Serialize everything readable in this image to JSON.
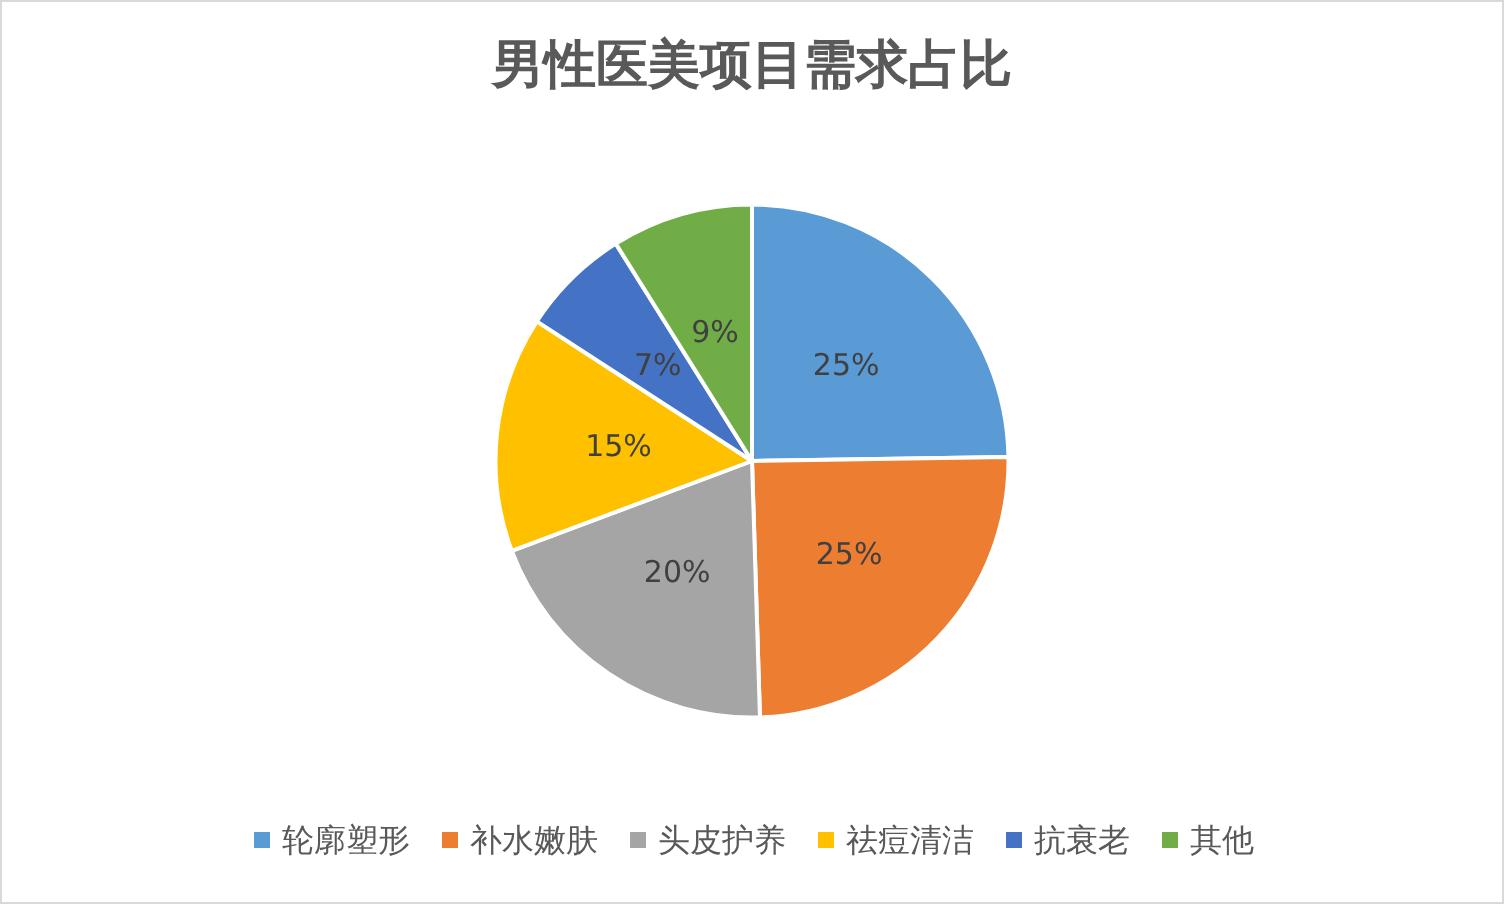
{
  "chart_data": {
    "type": "pie",
    "title": "男性医美项目需求占比",
    "categories": [
      "轮廓塑形",
      "补水嫩肤",
      "头皮护养",
      "祛痘清洁",
      "抗衰老",
      "其他"
    ],
    "values": [
      25,
      25,
      20,
      15,
      7,
      9
    ],
    "value_labels": [
      "25%",
      "25%",
      "20%",
      "15%",
      "7%",
      "9%"
    ],
    "colors": [
      "#5b9bd5",
      "#ed7d31",
      "#a5a5a5",
      "#ffc000",
      "#4472c4",
      "#70ad47"
    ],
    "legend": "bottom"
  }
}
